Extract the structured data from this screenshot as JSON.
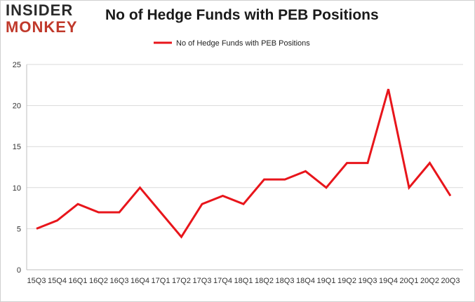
{
  "logo": {
    "line1": "INSIDER",
    "line2": "MONKEY"
  },
  "chart_data": {
    "type": "line",
    "title": "No of Hedge Funds with PEB Positions",
    "xlabel": "",
    "ylabel": "",
    "categories": [
      "15Q3",
      "15Q4",
      "16Q1",
      "16Q2",
      "16Q3",
      "16Q4",
      "17Q1",
      "17Q2",
      "17Q3",
      "17Q4",
      "18Q1",
      "18Q2",
      "18Q3",
      "18Q4",
      "19Q1",
      "19Q2",
      "19Q3",
      "19Q4",
      "20Q1",
      "20Q2",
      "20Q3"
    ],
    "series": [
      {
        "name": "No of Hedge Funds with PEB Positions",
        "color": "#e8151b",
        "values": [
          5,
          6,
          8,
          7,
          7,
          10,
          7,
          4,
          8,
          9,
          8,
          11,
          11,
          12,
          10,
          13,
          13,
          22,
          10,
          13,
          9
        ]
      }
    ],
    "ylim": [
      0,
      25
    ],
    "yticks": [
      0,
      5,
      10,
      15,
      20,
      25
    ],
    "grid": true,
    "legend_position": "top-center",
    "colors": {
      "line": "#e8151b",
      "grid": "#d9d9d9",
      "axis": "#bfbfbf"
    }
  }
}
